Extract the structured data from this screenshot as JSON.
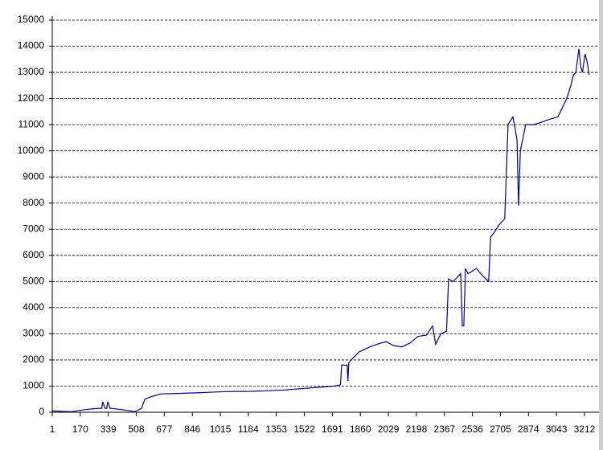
{
  "chart_data": {
    "type": "line",
    "x": [
      1,
      60,
      120,
      200,
      280,
      300,
      305,
      320,
      330,
      335,
      350,
      420,
      500,
      540,
      560,
      600,
      655,
      760,
      900,
      1050,
      1200,
      1300,
      1400,
      1500,
      1600,
      1700,
      1740,
      1747,
      1780,
      1785,
      1790,
      1850,
      1917,
      1960,
      2015,
      2060,
      2110,
      2160,
      2207,
      2260,
      2295,
      2315,
      2345,
      2380,
      2392,
      2420,
      2465,
      2475,
      2484,
      2494,
      2510,
      2560,
      2600,
      2634,
      2645,
      2670,
      2700,
      2731,
      2745,
      2751,
      2780,
      2795,
      2805,
      2814,
      2825,
      2857,
      2905,
      2955,
      3000,
      3052,
      3105,
      3130,
      3145,
      3160,
      3178,
      3190,
      3200,
      3215,
      3228,
      3240
    ],
    "values": [
      50,
      30,
      20,
      100,
      150,
      150,
      400,
      150,
      150,
      400,
      150,
      100,
      20,
      150,
      500,
      600,
      700,
      720,
      750,
      790,
      800,
      820,
      850,
      900,
      950,
      1000,
      1050,
      1800,
      1800,
      1200,
      1900,
      2300,
      2500,
      2600,
      2700,
      2550,
      2500,
      2650,
      2900,
      2950,
      3300,
      2600,
      3000,
      3100,
      5100,
      5000,
      5300,
      3300,
      3300,
      5500,
      5300,
      5500,
      5200,
      5000,
      6700,
      6900,
      7200,
      7400,
      10000,
      11000,
      11300,
      10800,
      10400,
      7900,
      10000,
      11000,
      11000,
      11100,
      11200,
      11300,
      12000,
      12500,
      12900,
      13000,
      13900,
      13200,
      13000,
      13700,
      13400,
      12900
    ],
    "color": "#000080",
    "xlim": [
      1,
      3251
    ],
    "xticks": [
      1,
      170,
      339,
      508,
      677,
      846,
      1015,
      1184,
      1353,
      1522,
      1691,
      1860,
      2029,
      2198,
      2367,
      2536,
      2705,
      2874,
      3043,
      3212
    ],
    "ylim": [
      0,
      15000
    ],
    "yticks": [
      0,
      1000,
      2000,
      3000,
      4000,
      5000,
      6000,
      7000,
      8000,
      9000,
      10000,
      11000,
      12000,
      13000,
      14000,
      15000
    ],
    "grid": true
  }
}
